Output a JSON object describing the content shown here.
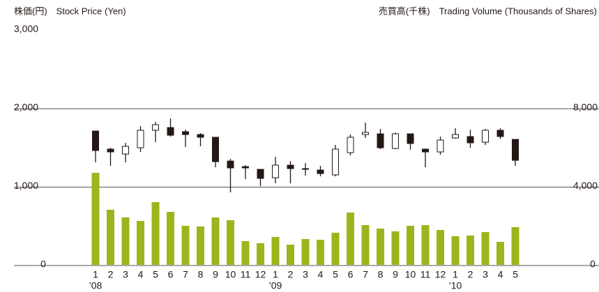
{
  "chart_data": {
    "type": "candlestick",
    "y_label": "株価(円)　Stock Price (Yen)",
    "y2_label": "売買高(千株)　Trading Volume (Thousands of Shares)",
    "categories": [
      "1",
      "2",
      "3",
      "4",
      "5",
      "6",
      "7",
      "8",
      "9",
      "10",
      "11",
      "12",
      "1",
      "2",
      "3",
      "4",
      "5",
      "6",
      "7",
      "8",
      "9",
      "10",
      "11",
      "12",
      "1",
      "2",
      "3",
      "4",
      "5"
    ],
    "year_labels": [
      "’08",
      null,
      null,
      null,
      null,
      null,
      null,
      null,
      null,
      null,
      null,
      null,
      "’09",
      null,
      null,
      null,
      null,
      null,
      null,
      null,
      null,
      null,
      null,
      null,
      "’10",
      null,
      null,
      null,
      null
    ],
    "open": [
      1707,
      1476,
      1413,
      1493,
      1716,
      1751,
      1698,
      1662,
      1627,
      1324,
      1253,
      1218,
      1111,
      1271,
      1227,
      1209,
      1147,
      1431,
      1662,
      1671,
      1484,
      1671,
      1476,
      1440,
      1618,
      1636,
      1564,
      1716,
      1600
    ],
    "high": [
      1707,
      1493,
      1556,
      1769,
      1822,
      1867,
      1724,
      1680,
      1627,
      1351,
      1271,
      1218,
      1378,
      1324,
      1298,
      1262,
      1529,
      1662,
      1813,
      1733,
      1689,
      1671,
      1484,
      1636,
      1742,
      1724,
      1733,
      1742,
      1600
    ],
    "low": [
      1307,
      1262,
      1307,
      1440,
      1564,
      1636,
      1502,
      1511,
      1244,
      924,
      1093,
      1004,
      1040,
      1040,
      1138,
      1129,
      1129,
      1396,
      1618,
      1476,
      1476,
      1467,
      1244,
      1404,
      1609,
      1493,
      1529,
      1609,
      1262
    ],
    "close": [
      1458,
      1440,
      1511,
      1716,
      1787,
      1653,
      1662,
      1627,
      1316,
      1236,
      1236,
      1102,
      1271,
      1227,
      1218,
      1164,
      1476,
      1627,
      1689,
      1493,
      1671,
      1547,
      1440,
      1591,
      1662,
      1556,
      1716,
      1636,
      1333
    ],
    "color_up": "#ffffff",
    "color_down": "#231815",
    "volume": {
      "axis": "y2",
      "color": "#9cb51c",
      "values": [
        4693,
        2809,
        2418,
        2240,
        3200,
        2702,
        1991,
        1956,
        2418,
        2276,
        1209,
        1102,
        1422,
        1031,
        1316,
        1280,
        1636,
        2667,
        2027,
        1849,
        1707,
        1991,
        2027,
        1778,
        1458,
        1493,
        1671,
        1173,
        1920
      ]
    },
    "ylim": [
      0,
      3000
    ],
    "yticks": [
      0,
      {
        "value": 1000,
        "label": "1,000"
      },
      {
        "value": 2000,
        "label": "2,000"
      },
      {
        "value": 3000,
        "label": "3,000"
      }
    ],
    "y2lim": [
      0,
      12000
    ],
    "y2ticks": [
      0,
      {
        "value": 4000,
        "label": "4,000"
      },
      {
        "value": 8000,
        "label": "8,000"
      }
    ],
    "grid": true
  }
}
